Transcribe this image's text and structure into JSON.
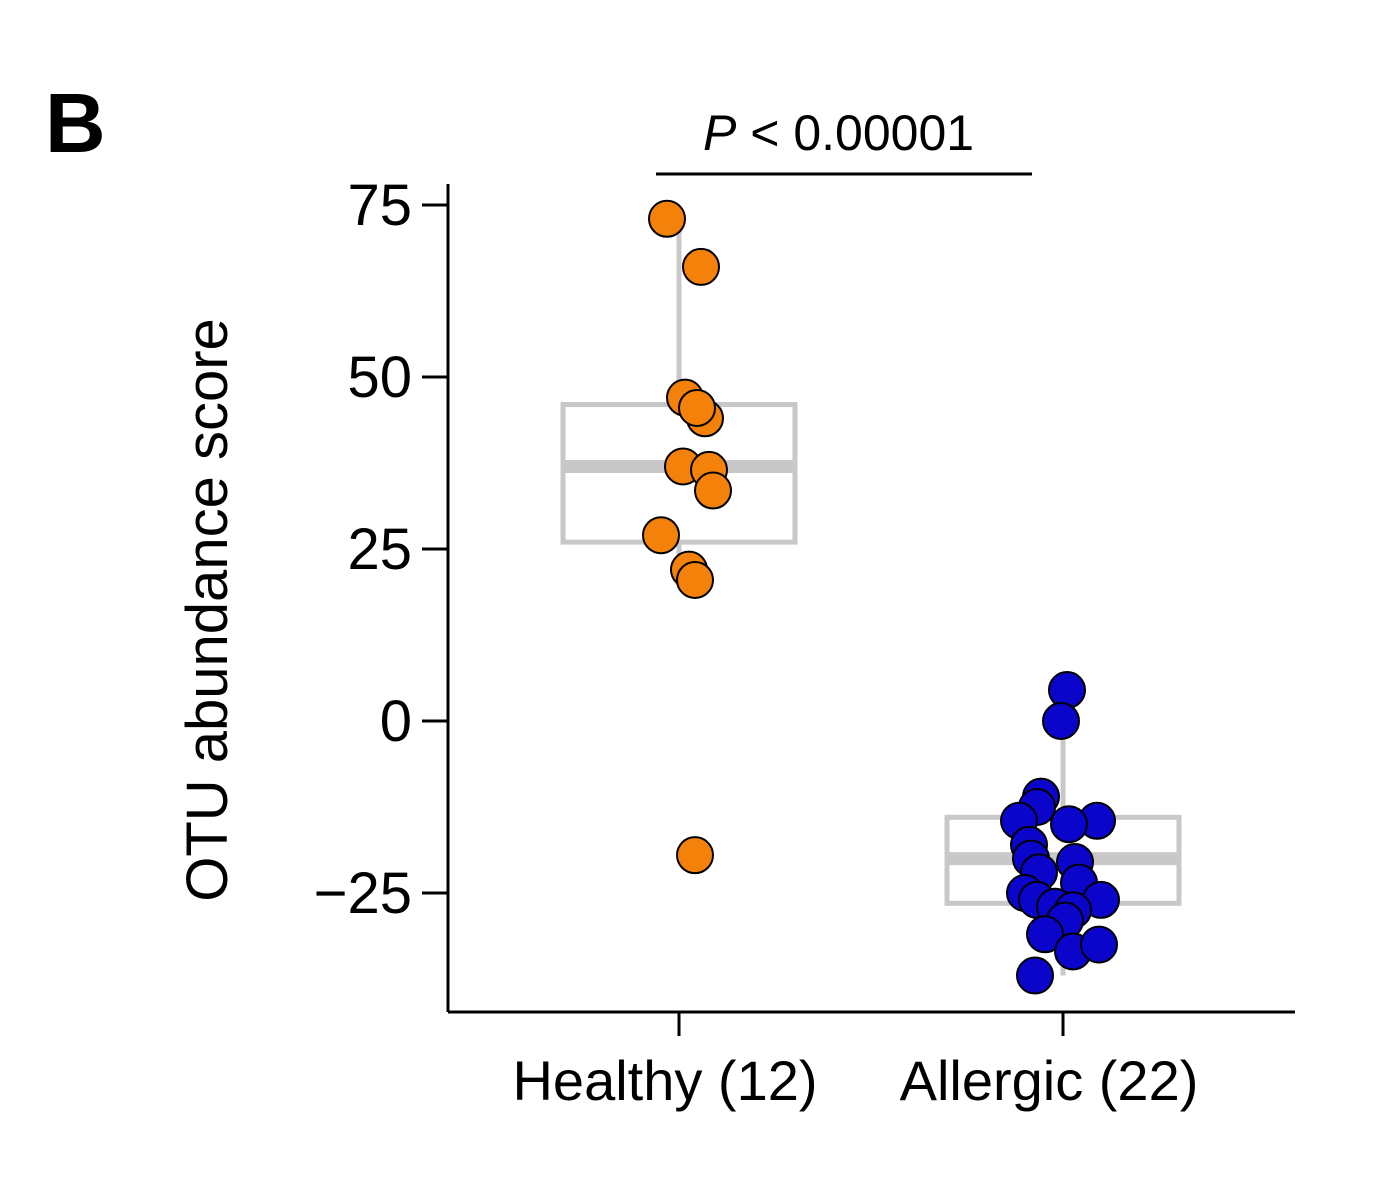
{
  "panel_letter": "B",
  "colors": {
    "healthy": "#f4820a",
    "allergic": "#0b05cc",
    "box": "#c8c8c8",
    "axis": "#000000"
  },
  "significance": {
    "p_symbol": "P",
    "p_text": " < 0.00001"
  },
  "chart_data": {
    "type": "box",
    "title": "",
    "ylabel": "OTU abundance score",
    "xlabel": "",
    "ylim": [
      -42,
      78
    ],
    "yticks": [
      75,
      50,
      25,
      0,
      -25
    ],
    "ytick_labels": [
      "75",
      "50",
      "25",
      "0",
      "−25"
    ],
    "categories": [
      "Healthy (12)",
      "Allergic (22)"
    ],
    "series": [
      {
        "category": "Healthy (12)",
        "box": {
          "q1": 26,
          "median": 37,
          "q3": 46,
          "whisker_low": 20,
          "whisker_high": 73
        },
        "points": [
          73,
          66,
          47,
          44,
          45.5,
          37,
          36.5,
          33.5,
          27,
          22,
          20.5,
          -19.5
        ]
      },
      {
        "category": "Allergic (22)",
        "box": {
          "q1": -26.5,
          "median": -20,
          "q3": -14,
          "whisker_low": -37,
          "whisker_high": 0
        },
        "points": [
          4.5,
          0,
          -11,
          -12.5,
          -14.5,
          -14.5,
          -15,
          -18,
          -20,
          -20.5,
          -22,
          -23.5,
          -25,
          -26,
          -26,
          -27,
          -27.5,
          -29,
          -31,
          -33.5,
          -32.5,
          -37
        ]
      }
    ]
  }
}
